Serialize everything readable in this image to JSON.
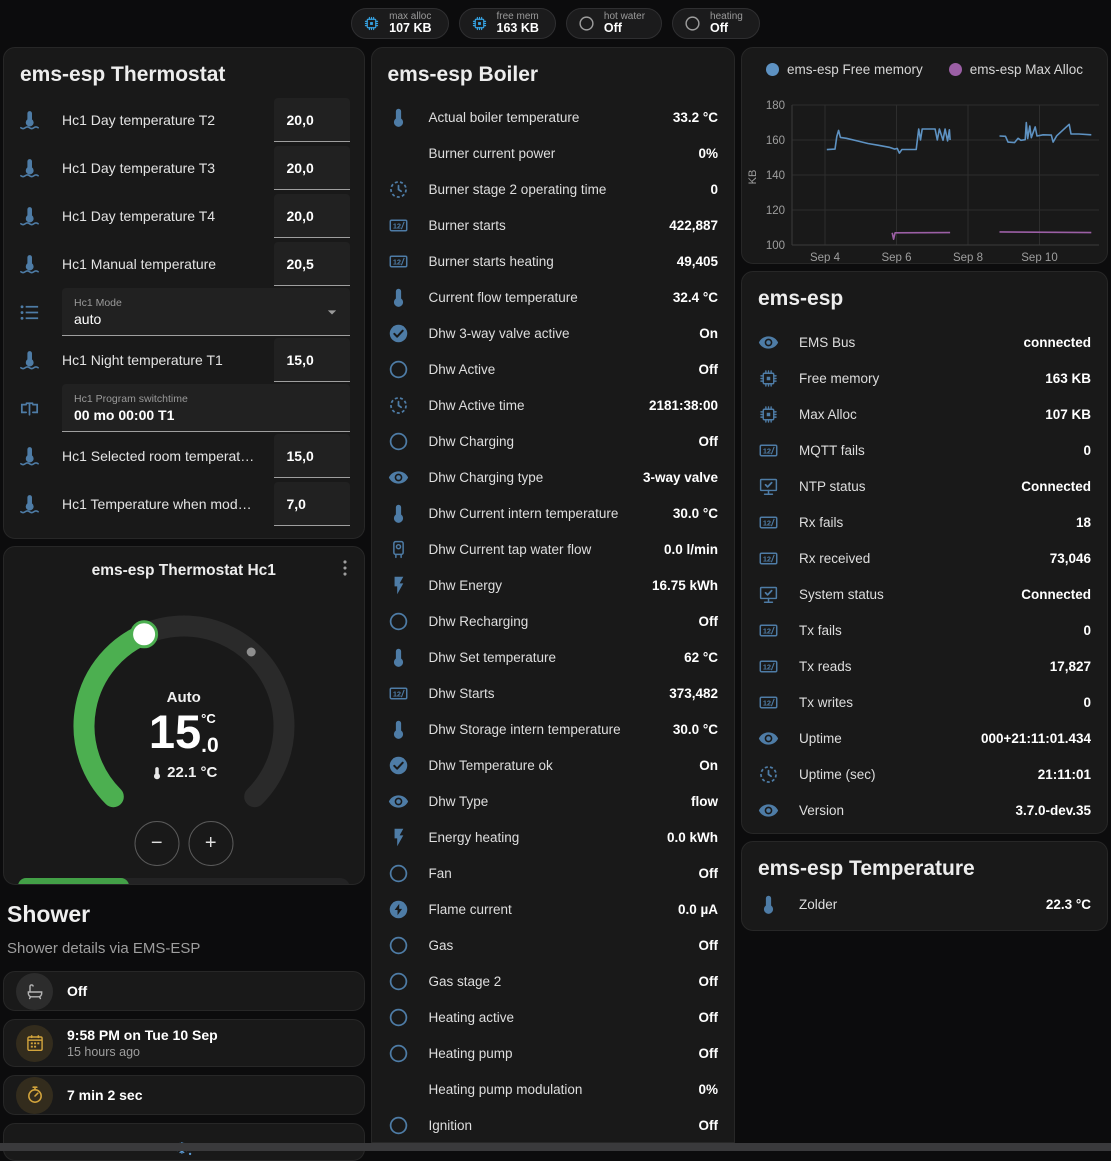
{
  "colors": {
    "accent_blue": "#4e7ca6",
    "chip_blue": "#36a3e3",
    "green_button": "#43a047",
    "arc_green": "#4caf50",
    "amber": "#d2a43c",
    "chart_blue": "#5e92c2",
    "chart_purple": "#9b5fa5",
    "snowflake_blue": "#5b9bd5",
    "gray_icon": "#b5b5b5"
  },
  "header": {
    "chips": [
      {
        "id": "max-alloc",
        "icon": "chip",
        "icon_color": "#36a3e3",
        "label": "max alloc",
        "value": "107 KB"
      },
      {
        "id": "free-mem",
        "icon": "chip",
        "icon_color": "#36a3e3",
        "label": "free mem",
        "value": "163 KB"
      },
      {
        "id": "hot-water",
        "icon": "circle",
        "icon_color": "#9e9e9e",
        "label": "hot water",
        "value": "Off"
      },
      {
        "id": "heating",
        "icon": "circle",
        "icon_color": "#9e9e9e",
        "label": "heating",
        "value": "Off"
      }
    ]
  },
  "thermostat_card": {
    "title": "ems-esp Thermostat",
    "rows": [
      {
        "type": "number",
        "icon": "thermometer-water",
        "label": "Hc1 Day temperature T2",
        "value": "20,0"
      },
      {
        "type": "number",
        "icon": "thermometer-water",
        "label": "Hc1 Day temperature T3",
        "value": "20,0"
      },
      {
        "type": "number",
        "icon": "thermometer-water",
        "label": "Hc1 Day temperature T4",
        "value": "20,0"
      },
      {
        "type": "number",
        "icon": "thermometer-water",
        "label": "Hc1 Manual temperature",
        "value": "20,5"
      },
      {
        "type": "select",
        "icon": "list",
        "label": "Hc1 Mode",
        "value": "auto"
      },
      {
        "type": "number",
        "icon": "thermometer-water",
        "label": "Hc1 Night temperature T1",
        "value": "15,0"
      },
      {
        "type": "text",
        "icon": "valve",
        "label": "Hc1 Program switchtime",
        "value": "00 mo 00:00 T1"
      },
      {
        "type": "number",
        "icon": "thermometer-water",
        "label": "Hc1 Selected room temperat…",
        "value": "15,0"
      },
      {
        "type": "number",
        "icon": "thermometer-water",
        "label": "Hc1 Temperature when mod…",
        "value": "7,0"
      }
    ]
  },
  "hc1_card": {
    "title": "ems-esp Thermostat Hc1",
    "mode_label": "Auto",
    "target_whole": "15",
    "target_decimal": ".0",
    "target_unit": "°C",
    "current_temp": "22.1 °C",
    "minus_label": "−",
    "plus_label": "+",
    "modes": [
      {
        "id": "auto",
        "icon": "thermostat-auto",
        "active": true
      },
      {
        "id": "heat",
        "icon": "fire",
        "active": false
      },
      {
        "id": "off",
        "icon": "power",
        "active": false
      }
    ]
  },
  "shower": {
    "title": "Shower",
    "subtitle": "Shower details via EMS-ESP",
    "items": [
      {
        "icon": "bathtub",
        "style": "gray",
        "title": "Off",
        "subtitle": ""
      },
      {
        "icon": "calendar",
        "style": "amber",
        "title": "9:58 PM on Tue 10 Sep",
        "subtitle": "15 hours ago"
      },
      {
        "icon": "timer",
        "style": "amber",
        "title": "7 min 2 sec",
        "subtitle": ""
      },
      {
        "icon": "snowflake-alert",
        "style": "blue-center",
        "title": "",
        "subtitle": ""
      }
    ]
  },
  "boiler_card": {
    "title": "ems-esp Boiler",
    "rows": [
      {
        "icon": "thermometer",
        "label": "Actual boiler temperature",
        "value": "33.2 °C"
      },
      {
        "icon": "angle",
        "label": "Burner current power",
        "value": "0%"
      },
      {
        "icon": "clock-dashed",
        "label": "Burner stage 2 operating time",
        "value": "0"
      },
      {
        "icon": "counter",
        "label": "Burner starts",
        "value": "422,887"
      },
      {
        "icon": "counter",
        "label": "Burner starts heating",
        "value": "49,405"
      },
      {
        "icon": "thermometer",
        "label": "Current flow temperature",
        "value": "32.4 °C"
      },
      {
        "icon": "check-circle",
        "label": "Dhw 3-way valve active",
        "value": "On"
      },
      {
        "icon": "circle",
        "label": "Dhw Active",
        "value": "Off"
      },
      {
        "icon": "clock-dashed",
        "label": "Dhw Active time",
        "value": "2181:38:00"
      },
      {
        "icon": "circle",
        "label": "Dhw Charging",
        "value": "Off"
      },
      {
        "icon": "eye",
        "label": "Dhw Charging type",
        "value": "3-way valve"
      },
      {
        "icon": "thermometer",
        "label": "Dhw Current intern temperature",
        "value": "30.0 °C"
      },
      {
        "icon": "water-boiler",
        "label": "Dhw Current tap water flow",
        "value": "0.0 l/min"
      },
      {
        "icon": "flash",
        "label": "Dhw Energy",
        "value": "16.75 kWh"
      },
      {
        "icon": "circle",
        "label": "Dhw Recharging",
        "value": "Off"
      },
      {
        "icon": "thermometer",
        "label": "Dhw Set temperature",
        "value": "62 °C"
      },
      {
        "icon": "counter",
        "label": "Dhw Starts",
        "value": "373,482"
      },
      {
        "icon": "thermometer",
        "label": "Dhw Storage intern temperature",
        "value": "30.0 °C"
      },
      {
        "icon": "check-circle",
        "label": "Dhw Temperature ok",
        "value": "On"
      },
      {
        "icon": "eye",
        "label": "Dhw Type",
        "value": "flow"
      },
      {
        "icon": "flash",
        "label": "Energy heating",
        "value": "0.0 kWh"
      },
      {
        "icon": "circle",
        "label": "Fan",
        "value": "Off"
      },
      {
        "icon": "flash-circle",
        "label": "Flame current",
        "value": "0.0 µA"
      },
      {
        "icon": "circle",
        "label": "Gas",
        "value": "Off"
      },
      {
        "icon": "circle",
        "label": "Gas stage 2",
        "value": "Off"
      },
      {
        "icon": "circle",
        "label": "Heating active",
        "value": "Off"
      },
      {
        "icon": "circle",
        "label": "Heating pump",
        "value": "Off"
      },
      {
        "icon": "angle",
        "label": "Heating pump modulation",
        "value": "0%"
      },
      {
        "icon": "circle",
        "label": "Ignition",
        "value": "Off"
      }
    ]
  },
  "chart_data": {
    "type": "line",
    "title": "",
    "ylabel": "KB",
    "y_ticks": [
      100,
      120,
      140,
      160,
      180
    ],
    "x_tick_labels": [
      "Sep 4",
      "Sep 6",
      "Sep 8",
      "Sep 10"
    ],
    "x_tick_days": [
      4,
      6,
      8,
      10
    ],
    "x_range": [
      3.08,
      11.66
    ],
    "y_range": [
      100,
      180
    ],
    "grid": true,
    "legend_position": "top",
    "series": [
      {
        "name": "ems-esp Free memory",
        "color": "#5e92c2",
        "segments": [
          [
            [
              4.05,
              154.5
            ],
            [
              4.28,
              154.8
            ],
            [
              4.33,
              162.0
            ],
            [
              4.38,
              165.5
            ],
            [
              4.43,
              161.5
            ],
            [
              4.6,
              161.0
            ],
            [
              4.9,
              159.5
            ],
            [
              5.2,
              158.0
            ],
            [
              5.5,
              157.0
            ],
            [
              5.8,
              155.8
            ],
            [
              5.95,
              154.8
            ],
            [
              6.02,
              155.2
            ],
            [
              6.08,
              152.5
            ],
            [
              6.15,
              154.6
            ],
            [
              6.55,
              154.6
            ],
            [
              6.62,
              166.3
            ],
            [
              6.67,
              160.0
            ],
            [
              6.72,
              166.3
            ],
            [
              7.08,
              166.3
            ],
            [
              7.14,
              160.0
            ],
            [
              7.2,
              166.3
            ],
            [
              7.3,
              159.8
            ],
            [
              7.36,
              166.3
            ],
            [
              7.43,
              159.5
            ],
            [
              7.48,
              165.8
            ],
            [
              7.5,
              160.0
            ]
          ],
          [
            [
              8.88,
              162.3
            ],
            [
              9.05,
              162.1
            ],
            [
              9.12,
              158.8
            ],
            [
              9.3,
              158.5
            ],
            [
              9.4,
              161.0
            ],
            [
              9.48,
              159.8
            ],
            [
              9.6,
              160.2
            ],
            [
              9.63,
              170.0
            ],
            [
              9.67,
              160.8
            ],
            [
              9.73,
              168.0
            ],
            [
              9.77,
              161.3
            ],
            [
              9.88,
              167.5
            ],
            [
              9.93,
              162.3
            ],
            [
              10.1,
              163.0
            ],
            [
              10.33,
              162.8
            ],
            [
              10.38,
              158.8
            ],
            [
              10.48,
              162.4
            ],
            [
              10.83,
              169.0
            ],
            [
              10.88,
              163.4
            ],
            [
              11.1,
              163.4
            ],
            [
              11.45,
              163.0
            ]
          ]
        ]
      },
      {
        "name": "ems-esp Max Alloc",
        "color": "#9b5fa5",
        "segments": [
          [
            [
              5.88,
              107.0
            ],
            [
              5.92,
              103.3
            ],
            [
              5.96,
              107.0
            ],
            [
              7.5,
              107.1
            ]
          ],
          [
            [
              8.88,
              107.5
            ],
            [
              11.45,
              107.1
            ]
          ]
        ]
      }
    ]
  },
  "emsesp_card": {
    "title": "ems-esp",
    "rows": [
      {
        "icon": "eye",
        "label": "EMS Bus",
        "value": "connected"
      },
      {
        "icon": "chip",
        "label": "Free memory",
        "value": "163 KB"
      },
      {
        "icon": "chip",
        "label": "Max Alloc",
        "value": "107 KB"
      },
      {
        "icon": "counter",
        "label": "MQTT fails",
        "value": "0"
      },
      {
        "icon": "monitor-check",
        "label": "NTP status",
        "value": "Connected"
      },
      {
        "icon": "counter",
        "label": "Rx fails",
        "value": "18"
      },
      {
        "icon": "counter",
        "label": "Rx received",
        "value": "73,046"
      },
      {
        "icon": "monitor-check",
        "label": "System status",
        "value": "Connected"
      },
      {
        "icon": "counter",
        "label": "Tx fails",
        "value": "0"
      },
      {
        "icon": "counter",
        "label": "Tx reads",
        "value": "17,827"
      },
      {
        "icon": "counter",
        "label": "Tx writes",
        "value": "0"
      },
      {
        "icon": "eye",
        "label": "Uptime",
        "value": "000+21:11:01.434"
      },
      {
        "icon": "clock-dashed",
        "label": "Uptime (sec)",
        "value": "21:11:01"
      },
      {
        "icon": "eye",
        "label": "Version",
        "value": "3.7.0-dev.35"
      }
    ]
  },
  "temperature_card": {
    "title": "ems-esp Temperature",
    "rows": [
      {
        "icon": "thermometer",
        "label": "Zolder",
        "value": "22.3 °C"
      }
    ]
  }
}
